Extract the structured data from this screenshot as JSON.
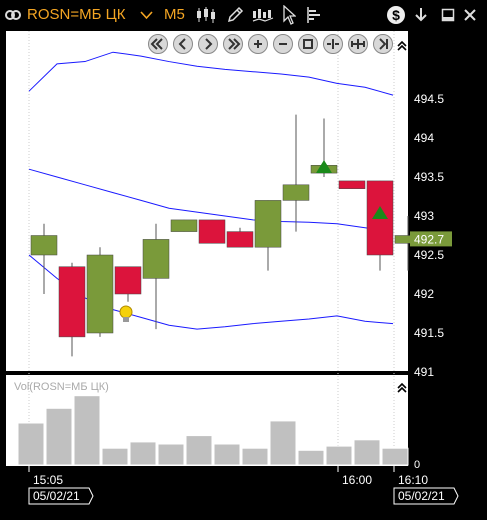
{
  "toolbar": {
    "symbol": "ROSN=МБ ЦК",
    "timeframe": "M5",
    "icons": [
      "link-icon",
      "chevron-down-icon",
      "candlestick-icon",
      "pencil-icon",
      "indicator-icon",
      "cursor-icon",
      "depth-icon",
      "dollar-icon",
      "download-icon",
      "minimize-icon",
      "close-icon"
    ]
  },
  "nav_buttons": [
    "scroll-first",
    "scroll-back",
    "scroll-forward",
    "scroll-last",
    "zoom-in",
    "zoom-out",
    "zoom-fit",
    "compress-x",
    "expand-x",
    "scroll-end"
  ],
  "colors": {
    "up": "#7a9a3a",
    "down": "#dc143c",
    "bands": "#1a1aff",
    "volume": "#c0c0c0",
    "accent": "#f5a623"
  },
  "price_axis": {
    "ticks": [
      "494.5",
      "494",
      "493.5",
      "493",
      "492.5",
      "492",
      "491.5",
      "491"
    ],
    "current_price": "492.7"
  },
  "time_axis": {
    "ticks": [
      "15:05",
      "16:00",
      "16:10"
    ],
    "start_date": "05/02/21",
    "end_date": "05/02/21"
  },
  "volume_panel": {
    "label": "Vol(ROSN=МБ ЦК)",
    "axis_zero": "0"
  },
  "chart_data": {
    "type": "candlestick",
    "ylim": [
      490.95,
      494.9
    ],
    "candles": [
      {
        "o": 492.5,
        "h": 492.9,
        "l": 492.0,
        "c": 492.75
      },
      {
        "o": 492.35,
        "h": 492.4,
        "l": 491.2,
        "c": 491.45
      },
      {
        "o": 491.5,
        "h": 492.6,
        "l": 491.45,
        "c": 492.5
      },
      {
        "o": 492.35,
        "h": 492.35,
        "l": 491.9,
        "c": 492.0
      },
      {
        "o": 492.2,
        "h": 492.9,
        "l": 491.55,
        "c": 492.7
      },
      {
        "o": 492.8,
        "h": 492.95,
        "l": 492.8,
        "c": 492.95
      },
      {
        "o": 492.95,
        "h": 492.95,
        "l": 492.65,
        "c": 492.65
      },
      {
        "o": 492.8,
        "h": 492.85,
        "l": 492.6,
        "c": 492.6
      },
      {
        "o": 492.6,
        "h": 493.2,
        "l": 492.3,
        "c": 493.2
      },
      {
        "o": 493.2,
        "h": 494.3,
        "l": 492.8,
        "c": 493.4
      },
      {
        "o": 493.55,
        "h": 494.25,
        "l": 493.5,
        "c": 493.65
      },
      {
        "o": 493.45,
        "h": 493.45,
        "l": 493.35,
        "c": 493.35
      },
      {
        "o": 493.45,
        "h": 493.45,
        "l": 492.3,
        "c": 492.5
      },
      {
        "o": 492.65,
        "h": 493.0,
        "l": 492.3,
        "c": 492.75
      }
    ],
    "bands": {
      "upper": [
        494.6,
        494.95,
        494.98,
        495.1,
        495.05,
        494.98,
        494.92,
        494.88,
        494.85,
        494.82,
        494.78,
        494.7,
        494.65,
        494.55
      ],
      "middle": [
        493.6,
        493.5,
        493.4,
        493.3,
        493.2,
        493.1,
        493.05,
        493.0,
        492.95,
        492.93,
        492.92,
        492.9,
        492.85,
        492.8
      ],
      "lower": [
        492.5,
        492.2,
        491.95,
        491.8,
        491.7,
        491.6,
        491.55,
        491.58,
        491.62,
        491.65,
        491.68,
        491.72,
        491.65,
        491.62
      ]
    },
    "buy_signals": [
      10,
      12
    ],
    "alert_marker": 3,
    "volume": [
      1.0,
      1.35,
      1.65,
      0.4,
      0.55,
      0.5,
      0.7,
      0.5,
      0.4,
      1.05,
      0.35,
      0.45,
      0.6,
      0.4
    ]
  }
}
